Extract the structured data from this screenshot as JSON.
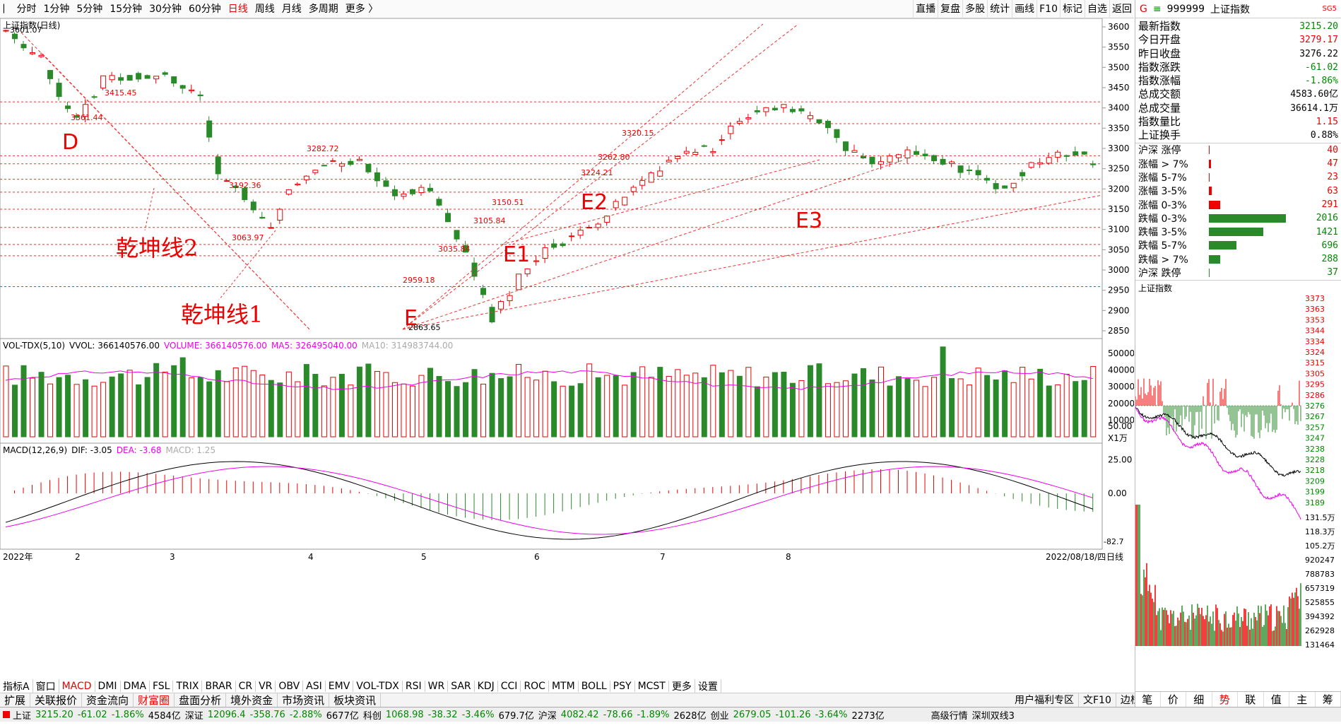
{
  "toolbar": {
    "periods": [
      "分时",
      "1分钟",
      "5分钟",
      "15分钟",
      "30分钟",
      "60分钟",
      "日线",
      "周线",
      "月线",
      "多周期",
      "更多 〉"
    ],
    "active": "日线",
    "tools": [
      "直播",
      "复盘",
      "多股",
      "统计",
      "画线",
      "F10",
      "标记",
      "自选",
      "返回"
    ]
  },
  "main": {
    "title": "上证指数(日线)",
    "high_label": "3601.07",
    "low_label": "2863.65",
    "price_ticks": [
      "3600",
      "3550",
      "3500",
      "3450",
      "3400",
      "3350",
      "3300",
      "3250",
      "3200",
      "3150",
      "3100",
      "3050",
      "3000",
      "2950",
      "2900",
      "2850"
    ],
    "point_labels": [
      "3415.45",
      "3361.44",
      "3192.36",
      "3063.97",
      "3282.72",
      "2959.18",
      "3035.84",
      "3105.84",
      "3150.51",
      "3224.21",
      "3262.80",
      "3320.15"
    ],
    "letters": [
      "D",
      "E",
      "E1",
      "E2",
      "E3"
    ],
    "annotations": [
      "乾坤线2",
      "乾坤线1"
    ]
  },
  "volume": {
    "title": "VOL-TDX(5,10)",
    "vol_label": "VVOL: 366140576.00",
    "volume_label": "VOLUME: 366140576.00",
    "ma5_label": "MA5: 326495040.00",
    "ma10_label": "MA10: 314983744.00",
    "ticks": [
      "50000",
      "40000",
      "30000",
      "20000",
      "10000"
    ],
    "unit": "X1万"
  },
  "macd": {
    "title": "MACD(12,26,9)",
    "dif": "DIF: -3.05",
    "dea": "DEA: -3.68",
    "macd": "MACD: 1.25",
    "ticks": [
      "50.00",
      "25.00",
      "0.00"
    ],
    "bottom": "-82.7"
  },
  "dates": {
    "labels": [
      "2022年",
      "2",
      "3",
      "4",
      "5",
      "6",
      "7",
      "8"
    ],
    "last": "2022/08/18/四",
    "period": "日线"
  },
  "indicator_tabs": [
    "指标A",
    "窗口",
    "MACD",
    "DMI",
    "DMA",
    "FSL",
    "TRIX",
    "BRAR",
    "CR",
    "VR",
    "OBV",
    "ASI",
    "EMV",
    "VOL-TDX",
    "RSI",
    "WR",
    "SAR",
    "KDJ",
    "CCI",
    "ROC",
    "MTM",
    "BOLL",
    "PSY",
    "MCST",
    "更多",
    "设置"
  ],
  "indicator_active": "MACD",
  "bottom_tabs": [
    "扩展",
    "关联报价",
    "资金流向",
    "财富圈",
    "盘面分析",
    "境外资金",
    "市场资讯",
    "板块资讯"
  ],
  "bottom_active": "财富圈",
  "bottom_right": [
    "用户福利专区",
    "文F10",
    "边栏"
  ],
  "side": {
    "code": "999999",
    "name": "上证指数",
    "tag": "SG5",
    "quotes": [
      {
        "k": "最新指数",
        "v": "3215.20",
        "c": "green"
      },
      {
        "k": "今日开盘",
        "v": "3279.17",
        "c": "red"
      },
      {
        "k": "昨日收盘",
        "v": "3276.22",
        "c": "black"
      },
      {
        "k": "指数涨跌",
        "v": "-61.02",
        "c": "green"
      },
      {
        "k": "指数涨幅",
        "v": "-1.86%",
        "c": "green"
      },
      {
        "k": "总成交额",
        "v": "4583.60亿",
        "c": "black"
      },
      {
        "k": "总成交量",
        "v": "36614.1万",
        "c": "black"
      },
      {
        "k": "指数量比",
        "v": "1.15",
        "c": "red"
      },
      {
        "k": "上证换手",
        "v": "0.88%",
        "c": "black"
      }
    ],
    "breadth": [
      {
        "k": "沪深 涨停",
        "v": "40",
        "c": "red",
        "w": 0
      },
      {
        "k": "涨幅 > 7%",
        "v": "47",
        "c": "red",
        "w": 2
      },
      {
        "k": "涨幅 5-7%",
        "v": "23",
        "c": "red",
        "w": 1
      },
      {
        "k": "涨幅 3-5%",
        "v": "63",
        "c": "red",
        "w": 3
      },
      {
        "k": "涨幅 0-3%",
        "v": "291",
        "c": "red",
        "w": 12
      },
      {
        "k": "跌幅 0-3%",
        "v": "2016",
        "c": "green",
        "w": 82
      },
      {
        "k": "跌幅 3-5%",
        "v": "1421",
        "c": "green",
        "w": 58
      },
      {
        "k": "跌幅 5-7%",
        "v": "696",
        "c": "green",
        "w": 29
      },
      {
        "k": "跌幅 > 7%",
        "v": "288",
        "c": "green",
        "w": 12
      },
      {
        "k": "沪深 跌停",
        "v": "37",
        "c": "green",
        "w": 1
      }
    ],
    "mini_title": "上证指数",
    "mini_ticks": [
      "3373",
      "3363",
      "3353",
      "3344",
      "3334",
      "3324",
      "3315",
      "3305",
      "3295",
      "3286",
      "3276",
      "3267",
      "3257",
      "3247",
      "3238",
      "3228",
      "3218",
      "3209",
      "3199",
      "3189"
    ],
    "mini_vol_ticks": [
      "131.5万",
      "118.3万",
      "105.2万",
      "920247",
      "788783",
      "657319",
      "525855",
      "394392",
      "262928",
      "131464"
    ],
    "tabs": [
      "笔",
      "价",
      "细",
      "势",
      "联",
      "值",
      "主",
      "筹"
    ],
    "active_tab": "势"
  },
  "status": [
    {
      "t": "上证",
      "c": "black"
    },
    {
      "t": "3215.20",
      "c": "green"
    },
    {
      "t": "-61.02",
      "c": "green"
    },
    {
      "t": "-1.86%",
      "c": "green"
    },
    {
      "t": "4584亿",
      "c": "black"
    },
    {
      "t": "深证",
      "c": "black"
    },
    {
      "t": "12096.4",
      "c": "green"
    },
    {
      "t": "-358.76",
      "c": "green"
    },
    {
      "t": "-2.88%",
      "c": "green"
    },
    {
      "t": "6677亿",
      "c": "black"
    },
    {
      "t": "科创",
      "c": "black"
    },
    {
      "t": "1068.98",
      "c": "green"
    },
    {
      "t": "-38.32",
      "c": "green"
    },
    {
      "t": "-3.46%",
      "c": "green"
    },
    {
      "t": "679.7亿",
      "c": "black"
    },
    {
      "t": "沪深",
      "c": "black"
    },
    {
      "t": "4082.42",
      "c": "green"
    },
    {
      "t": "-78.66",
      "c": "green"
    },
    {
      "t": "-1.89%",
      "c": "green"
    },
    {
      "t": "2628亿",
      "c": "black"
    },
    {
      "t": "创业",
      "c": "black"
    },
    {
      "t": "2679.05",
      "c": "green"
    },
    {
      "t": "-101.26",
      "c": "green"
    },
    {
      "t": "-3.64%",
      "c": "green"
    },
    {
      "t": "2273亿",
      "c": "black"
    },
    {
      "t": "高级行情",
      "c": "black"
    },
    {
      "t": "深圳双线3",
      "c": "black"
    }
  ]
}
